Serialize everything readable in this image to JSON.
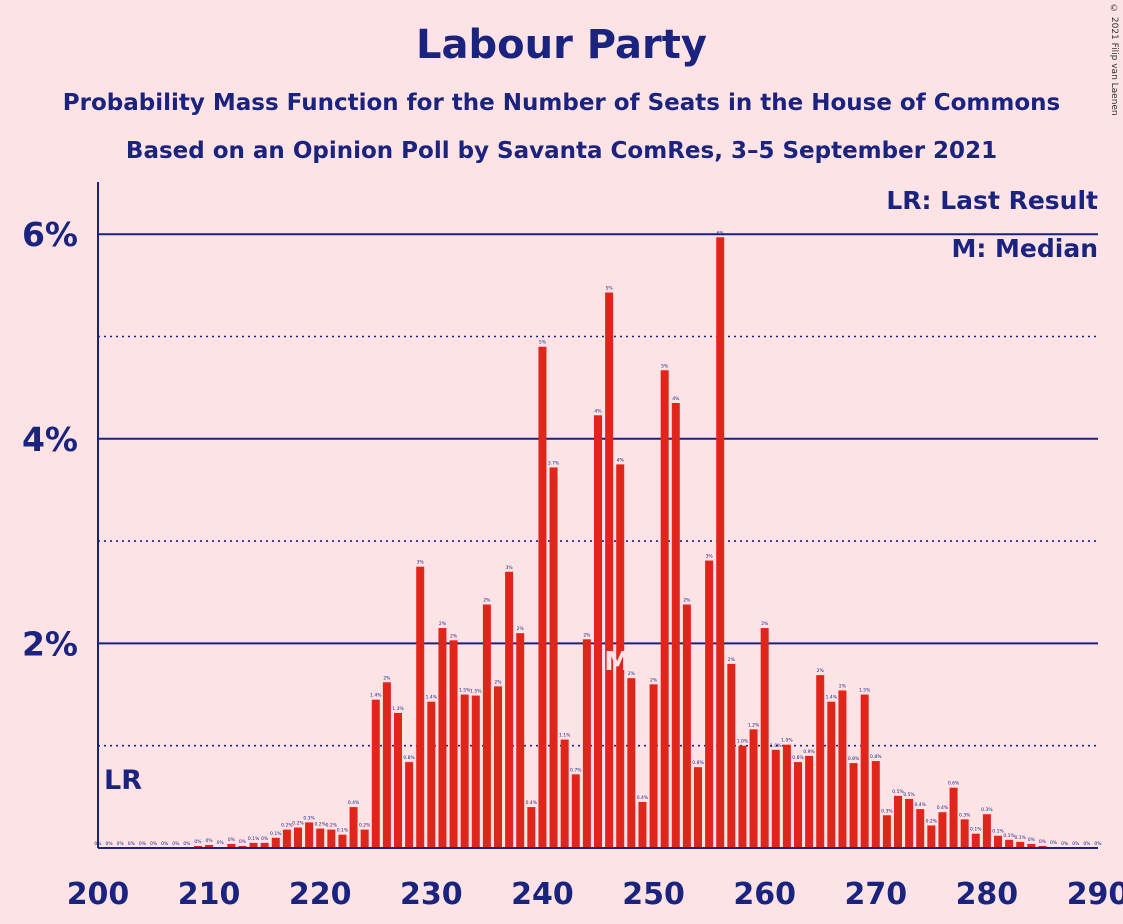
{
  "chart_data": {
    "type": "bar",
    "title": "Labour Party",
    "subtitle": "Probability Mass Function for the Number of Seats in the House of Commons",
    "subtitle2": "Based on an Opinion Poll by Savanta ComRes, 3–5 September 2021",
    "copyright": "© 2021 Filip van Laenen",
    "legend": [
      "LR: Last Result",
      "M: Median"
    ],
    "last_result_label": "LR",
    "last_result_seat": 200,
    "median_label": "M",
    "median_seat": 247,
    "x_ticks": [
      200,
      210,
      220,
      230,
      240,
      250,
      260,
      270,
      280,
      290
    ],
    "y_ticks": [
      {
        "value": 2,
        "label": "2%"
      },
      {
        "value": 4,
        "label": "4%"
      },
      {
        "value": 6,
        "label": "6%"
      }
    ],
    "xlim": [
      200,
      290
    ],
    "ylim": [
      0,
      6.5
    ],
    "grid": "solid at labelled ticks, dotted at odd percents",
    "x": [
      200,
      201,
      202,
      203,
      204,
      205,
      206,
      207,
      208,
      209,
      210,
      211,
      212,
      213,
      214,
      215,
      216,
      217,
      218,
      219,
      220,
      221,
      222,
      223,
      224,
      225,
      226,
      227,
      228,
      229,
      230,
      231,
      232,
      233,
      234,
      235,
      236,
      237,
      238,
      239,
      240,
      241,
      242,
      243,
      244,
      245,
      246,
      247,
      248,
      249,
      250,
      251,
      252,
      253,
      254,
      255,
      256,
      257,
      258,
      259,
      260,
      261,
      262,
      263,
      264,
      265,
      266,
      267,
      268,
      269,
      270,
      271,
      272,
      273,
      274,
      275,
      276,
      277,
      278,
      279,
      280,
      281,
      282,
      283,
      284,
      285,
      286,
      287,
      288,
      289,
      290
    ],
    "values": [
      0,
      0,
      0,
      0,
      0,
      0,
      0,
      0,
      0,
      0.02,
      0.03,
      0.01,
      0.04,
      0.02,
      0.05,
      0.05,
      0.1,
      0.18,
      0.2,
      0.25,
      0.19,
      0.18,
      0.13,
      0.4,
      0.18,
      1.45,
      1.62,
      1.32,
      0.84,
      2.75,
      1.43,
      2.15,
      2.03,
      1.5,
      1.49,
      2.38,
      1.58,
      2.7,
      2.1,
      0.4,
      4.9,
      3.72,
      1.06,
      0.72,
      2.04,
      4.23,
      5.43,
      3.75,
      1.66,
      0.45,
      1.6,
      4.67,
      4.35,
      2.38,
      0.79,
      2.81,
      5.97,
      1.8,
      1.0,
      1.16,
      2.15,
      0.96,
      1.01,
      0.84,
      0.9,
      1.69,
      1.43,
      1.54,
      0.83,
      1.5,
      0.85,
      0.32,
      0.51,
      0.48,
      0.38,
      0.22,
      0.35,
      0.59,
      0.28,
      0.14,
      0.33,
      0.12,
      0.08,
      0.06,
      0.04,
      0.02,
      0.01,
      0,
      0,
      0,
      0
    ],
    "labels": [
      "0%",
      "0%",
      "0%",
      "0%",
      "0%",
      "0%",
      "0%",
      "0%",
      "0%",
      "0%",
      "0%",
      "0%",
      "0%",
      "0%",
      "0.1%",
      "0%",
      "0.1%",
      "0.2%",
      "0.2%",
      "0.3%",
      "0.2%",
      "0.2%",
      "0.1%",
      "0.4%",
      "0.2%",
      "1.4%",
      "2%",
      "1.3%",
      "0.8%",
      "3%",
      "1.4%",
      "2%",
      "2%",
      "1.5%",
      "1.5%",
      "2%",
      "2%",
      "3%",
      "2%",
      "0.4%",
      "5%",
      "3.7%",
      "1.1%",
      "0.7%",
      "2%",
      "4%",
      "5%",
      "4%",
      "2%",
      "0.4%",
      "2%",
      "5%",
      "4%",
      "2%",
      "0.8%",
      "3%",
      "6%",
      "2%",
      "1.0%",
      "1.2%",
      "2%",
      "1.0%",
      "1.0%",
      "0.8%",
      "0.9%",
      "2%",
      "1.4%",
      "2%",
      "0.8%",
      "1.5%",
      "0.8%",
      "0.3%",
      "0.5%",
      "0.5%",
      "0.4%",
      "0.2%",
      "0.4%",
      "0.6%",
      "0.3%",
      "0.1%",
      "0.3%",
      "0.1%",
      "0.1%",
      "0.1%",
      "0%",
      "0%",
      "0%",
      "0%",
      "0%",
      "0%",
      "0%"
    ]
  },
  "colors": {
    "background": "#fde3e6",
    "bar": "#e0251b",
    "text": "#1a237e",
    "label": "#1a237e",
    "median_marker": "#fde3e6"
  }
}
